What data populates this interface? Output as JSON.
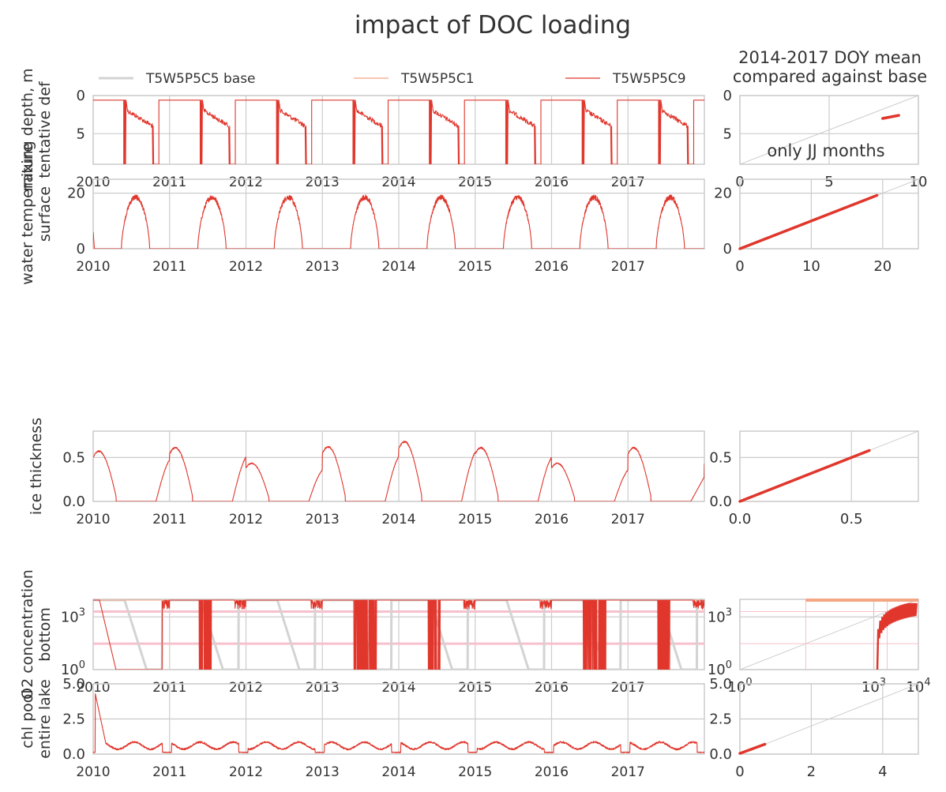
{
  "figure": {
    "title": "impact of DOC loading",
    "right_title": "2014-2017 DOY mean\ncompared against base",
    "right_annotation": "only JJ months"
  },
  "legend": [
    {
      "name": "T5W5P5C5 base",
      "color": "#d3d3d3"
    },
    {
      "name": "T5W5P5C1",
      "color": "#f4a582"
    },
    {
      "name": "T5W5P5C9",
      "color": "#e0362c"
    }
  ],
  "colors": {
    "base": "#d3d3d3",
    "c1": "#f4a582",
    "c9": "#e0362c",
    "ref_pink": "#f6c0cd",
    "grid": "#cccccc",
    "diag": "#cccccc"
  },
  "chart_data": [
    {
      "type": "line",
      "ylabel": "mixing depth, m\ntentative def",
      "x_range": [
        "2010",
        "2017-12-31"
      ],
      "x_ticks": [
        "2010",
        "2011",
        "2012",
        "2013",
        "2014",
        "2015",
        "2016",
        "2017"
      ],
      "ylim": [
        9,
        0
      ],
      "y_ticks": [
        0,
        5
      ],
      "y_tick_labels": [
        "0",
        "5"
      ],
      "series": [
        {
          "name": "T5W5P5C9",
          "kind": "mixing_depth",
          "summer_start_m": 2,
          "summer_end_m": 4,
          "winter_m": 0.6
        }
      ],
      "scatter": {
        "xlim": [
          0,
          10
        ],
        "ylim": [
          9,
          0
        ],
        "x_ticks": [
          0,
          5,
          10
        ],
        "x_tick_labels": [
          "0",
          "5",
          "10"
        ],
        "y_ticks": [
          0,
          5
        ],
        "y_tick_labels": [
          "0",
          "5"
        ],
        "line": {
          "from": [
            8.0,
            3.0
          ],
          "to": [
            8.9,
            2.6
          ]
        }
      }
    },
    {
      "type": "line",
      "ylabel": "water temperature\nsurface",
      "x_range": [
        "2010",
        "2017-12-31"
      ],
      "x_ticks": [
        "2010",
        "2011",
        "2012",
        "2013",
        "2014",
        "2015",
        "2016",
        "2017"
      ],
      "ylim": [
        0,
        25
      ],
      "y_ticks": [
        0,
        20
      ],
      "y_tick_labels": [
        "0",
        "20"
      ],
      "series": [
        {
          "name": "T5W5P5C9",
          "kind": "seasonal",
          "peak": 19.5,
          "peak_doy": 200,
          "start_doy": 135,
          "end_doy": 290
        }
      ],
      "scatter": {
        "xlim": [
          0,
          25
        ],
        "ylim": [
          0,
          25
        ],
        "x_ticks": [
          0,
          10,
          20
        ],
        "x_tick_labels": [
          "0",
          "10",
          "20"
        ],
        "y_ticks": [
          0,
          20
        ],
        "y_tick_labels": [
          "0",
          "20"
        ],
        "line": {
          "from": [
            0,
            0
          ],
          "to": [
            19.2,
            19.2
          ]
        }
      }
    },
    {
      "type": "line",
      "ylabel": "ice thickness",
      "x_range": [
        "2010",
        "2017-12-31"
      ],
      "x_ticks": [
        "2010",
        "2011",
        "2012",
        "2013",
        "2014",
        "2015",
        "2016",
        "2017"
      ],
      "ylim": [
        0,
        0.8
      ],
      "y_ticks": [
        0.0,
        0.5
      ],
      "y_tick_labels": [
        "0.0",
        "0.5"
      ],
      "series": [
        {
          "name": "T5W5P5C9",
          "kind": "ice",
          "winter_peaks": [
            0.58,
            0.62,
            0.44,
            0.63,
            0.69,
            0.62,
            0.44,
            0.62
          ],
          "end_value": 0.28
        }
      ],
      "scatter": {
        "xlim": [
          0,
          0.8
        ],
        "ylim": [
          0,
          0.8
        ],
        "x_ticks": [
          0.0,
          0.5
        ],
        "x_tick_labels": [
          "0.0",
          "0.5"
        ],
        "y_ticks": [
          0.0,
          0.5
        ],
        "y_tick_labels": [
          "0.0",
          "0.5"
        ],
        "line": {
          "from": [
            0,
            0
          ],
          "to": [
            0.58,
            0.58
          ]
        }
      }
    },
    {
      "type": "line",
      "ylabel": "O2 concentration\nbottom",
      "x_range": [
        "2010",
        "2017-12-31"
      ],
      "x_ticks": [
        "2010",
        "2011",
        "2012",
        "2013",
        "2014",
        "2015",
        "2016",
        "2017"
      ],
      "yscale": "log",
      "ylim": [
        1,
        10000
      ],
      "y_ticks": [
        1,
        1000
      ],
      "y_tick_labels": [
        "10^0",
        "10^3"
      ],
      "ref_lines": [
        2000,
        30
      ],
      "series": [
        {
          "name": "T5W5P5C5 base",
          "kind": "oxygen",
          "high": 9000
        },
        {
          "name": "T5W5P5C1",
          "kind": "constant",
          "value": 9000
        },
        {
          "name": "T5W5P5C9",
          "kind": "oxygen_spiky",
          "high": 9000
        }
      ],
      "scatter": {
        "xscale": "log",
        "yscale": "log",
        "xlim": [
          1,
          10000
        ],
        "ylim": [
          1,
          10000
        ],
        "x_ticks": [
          1,
          1000,
          10000
        ],
        "x_tick_labels": [
          "10^0",
          "10^3",
          "10^4"
        ],
        "y_ticks": [
          1,
          1000
        ],
        "y_tick_labels": [
          "10^0",
          "10^3"
        ]
      }
    },
    {
      "type": "line",
      "ylabel": "chl pool\nentire lake",
      "x_range": [
        "2010",
        "2017-12-31"
      ],
      "x_ticks": [
        "2010",
        "2011",
        "2012",
        "2013",
        "2014",
        "2015",
        "2016",
        "2017"
      ],
      "ylim": [
        0,
        5.0
      ],
      "y_ticks": [
        0.0,
        2.5,
        5.0
      ],
      "y_tick_labels": [
        "0.0",
        "2.5",
        "5.0"
      ],
      "series": [
        {
          "name": "T5W5P5C9",
          "kind": "chl",
          "start": 5.0,
          "level": 0.6
        }
      ],
      "scatter": {
        "xlim": [
          0,
          5
        ],
        "ylim": [
          0,
          5
        ],
        "x_ticks": [
          0,
          2,
          4
        ],
        "x_tick_labels": [
          "0",
          "2",
          "4"
        ],
        "y_ticks": [
          0.0,
          2.5,
          5.0
        ],
        "y_tick_labels": [
          "0.0",
          "2.5",
          "5.0"
        ],
        "line": {
          "from": [
            0,
            0.05
          ],
          "to": [
            0.7,
            0.7
          ]
        }
      }
    }
  ]
}
